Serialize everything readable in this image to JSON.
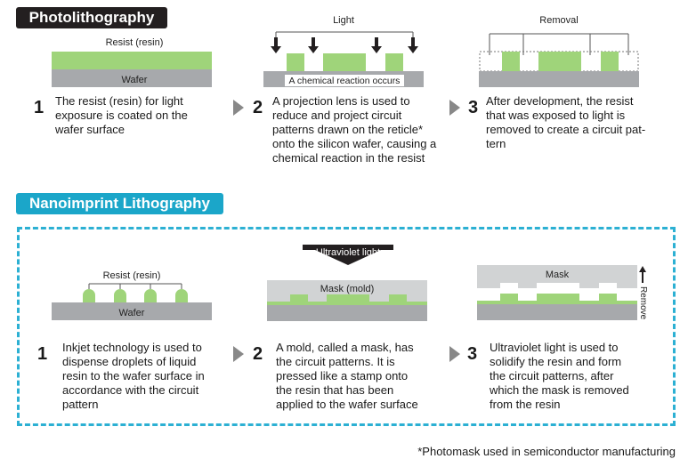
{
  "photo": {
    "title": "Photolithography",
    "diag1": {
      "resist_label": "Resist (resin)",
      "wafer_label": "Wafer"
    },
    "diag2": {
      "light_label": "Light",
      "reaction_label": "A chemical reaction occurs"
    },
    "diag3": {
      "removal_label": "Removal"
    },
    "steps": [
      {
        "num": "1",
        "lines": [
          "The resist (resin) for light",
          "exposure is coated on the",
          "wafer surface"
        ]
      },
      {
        "num": "2",
        "lines": [
          "A projection lens is used to",
          "reduce and project circuit",
          "patterns drawn on the reticle*",
          "onto the silicon wafer, causing a",
          "chemical reaction in the resist"
        ]
      },
      {
        "num": "3",
        "lines": [
          "After development, the resist",
          "that was exposed to light is",
          "removed to create a circuit pat-",
          "tern"
        ]
      }
    ]
  },
  "nano": {
    "title": "Nanoimprint Lithography",
    "diag1": {
      "resist_label": "Resist (resin)",
      "wafer_label": "Wafer"
    },
    "diag2": {
      "uv_label": "Ultraviolet light",
      "mask_label": "Mask (mold)"
    },
    "diag3": {
      "mask_label": "Mask",
      "remove_label": "Remove"
    },
    "steps": [
      {
        "num": "1",
        "lines": [
          "Inkjet technology is used to",
          "dispense droplets of liquid",
          "resin to the wafer surface in",
          "accordance with the circuit",
          "pattern"
        ]
      },
      {
        "num": "2",
        "lines": [
          "A mold, called a mask, has",
          "the circuit patterns. It is",
          "pressed like a stamp onto",
          "the resin that has been",
          "applied to the wafer surface"
        ]
      },
      {
        "num": "3",
        "lines": [
          "Ultraviolet light is used to",
          "solidify the resin and form",
          "the circuit patterns, after",
          "which the mask is removed",
          "from the resin"
        ]
      }
    ]
  },
  "footnote": "*Photomask used in semiconductor manufacturing",
  "colors": {
    "resist_green": "#9fd47a",
    "wafer_gray": "#a7a9ac",
    "mask_gray": "#d1d3d4",
    "accent_blue": "#1ba6c9",
    "dark": "#231f20"
  }
}
